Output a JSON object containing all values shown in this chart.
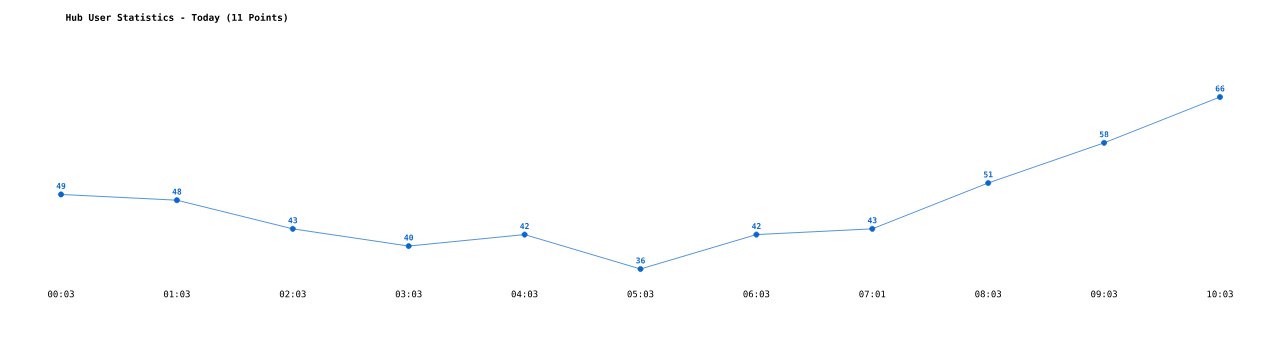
{
  "chart_data": {
    "type": "line",
    "title": "Hub User Statistics - Today (11 Points)",
    "categories": [
      "00:03",
      "01:03",
      "02:03",
      "03:03",
      "04:03",
      "05:03",
      "06:03",
      "07:01",
      "08:03",
      "09:03",
      "10:03"
    ],
    "values": [
      49,
      48,
      43,
      40,
      42,
      36,
      42,
      43,
      51,
      58,
      66
    ],
    "color": "#0a66cc",
    "marker": "circle",
    "data_labels": true
  }
}
